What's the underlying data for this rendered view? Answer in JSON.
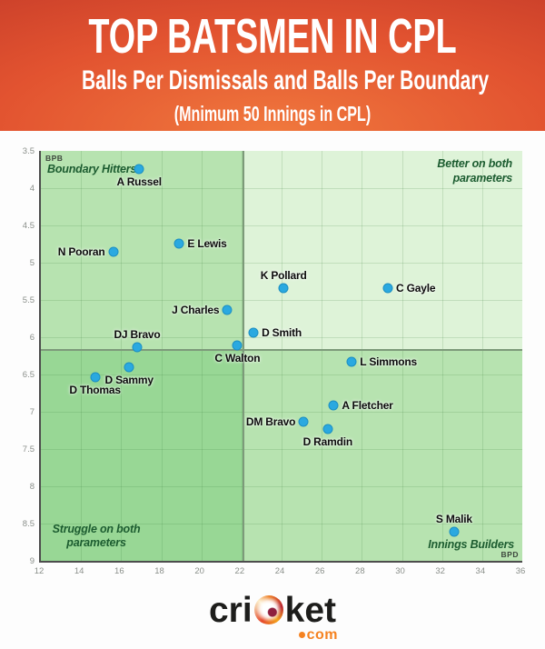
{
  "header": {
    "title": "TOP BATSMEN IN CPL",
    "subtitle": "Balls Per Dismissals and Balls Per Boundary",
    "note": "(Mnimum 50 Innings in CPL)",
    "colors": {
      "gradient_center": "#f0783d",
      "gradient_mid": "#e25330",
      "gradient_edge": "#ba3226",
      "text": "#ffffff"
    }
  },
  "chart_data": {
    "type": "scatter",
    "title": "TOP BATSMEN IN CPL — Balls Per Dismissals and Balls Per Boundary",
    "x_axis": {
      "label": "BPD",
      "min": 12,
      "max": 36,
      "ticks": [
        12,
        14,
        16,
        18,
        20,
        22,
        24,
        26,
        28,
        30,
        32,
        34,
        36
      ],
      "tick_labels": [
        "12",
        "14",
        "16",
        "18",
        "20",
        "22",
        "24",
        "26",
        "28",
        "30",
        "32",
        "34",
        "36"
      ]
    },
    "y_axis": {
      "label": "BPB",
      "min": 3.5,
      "max": 9,
      "increases_downward": true,
      "ticks": [
        3.5,
        4,
        4.5,
        5,
        5.5,
        6,
        6.5,
        7,
        7.5,
        8,
        8.5,
        9
      ],
      "tick_labels": [
        "3.5",
        "4",
        "4.5",
        "5",
        "5.5",
        "6",
        "6.5",
        "7",
        "7.5",
        "8",
        "8.5",
        "9"
      ]
    },
    "quadrant_split": {
      "x": 22.1,
      "y": 6.17
    },
    "quadrant_labels": {
      "top_left": "Boundary Hitters",
      "top_right": "Better on both parameters",
      "bottom_left": "Struggle on both parameters",
      "bottom_right": "Innings Builders"
    },
    "quadrant_colors": {
      "top_left": "#b7e3b0",
      "top_right": "#def3d8",
      "bottom_left": "#98d795",
      "bottom_right": "#b7e3b0"
    },
    "point_color": "#2aa9e0",
    "grid_color": "rgba(62,130,62,0.18)",
    "divider_color": "#7d9a7a",
    "annotation_color": "#1c5c30",
    "points": [
      {
        "name": "A Russel",
        "x": 16.9,
        "y": 3.74,
        "label_pos": "below"
      },
      {
        "name": "N Pooran",
        "x": 15.6,
        "y": 4.85,
        "label_pos": "left"
      },
      {
        "name": "E Lewis",
        "x": 18.9,
        "y": 4.74,
        "label_pos": "right"
      },
      {
        "name": "K Pollard",
        "x": 24.1,
        "y": 5.34,
        "label_pos": "above"
      },
      {
        "name": "C Gayle",
        "x": 29.3,
        "y": 5.34,
        "label_pos": "right"
      },
      {
        "name": "J Charles",
        "x": 21.3,
        "y": 5.64,
        "label_pos": "left"
      },
      {
        "name": "D Smith",
        "x": 22.6,
        "y": 5.94,
        "label_pos": "right"
      },
      {
        "name": "DJ Bravo",
        "x": 16.8,
        "y": 6.13,
        "label_pos": "above"
      },
      {
        "name": "C Walton",
        "x": 21.8,
        "y": 6.11,
        "label_pos": "below"
      },
      {
        "name": "L Simmons",
        "x": 27.5,
        "y": 6.33,
        "label_pos": "right"
      },
      {
        "name": "D Sammy",
        "x": 16.4,
        "y": 6.4,
        "label_pos": "below"
      },
      {
        "name": "D Thomas",
        "x": 14.7,
        "y": 6.54,
        "label_pos": "below"
      },
      {
        "name": "A Fletcher",
        "x": 26.6,
        "y": 6.92,
        "label_pos": "right"
      },
      {
        "name": "DM Bravo",
        "x": 25.1,
        "y": 7.13,
        "label_pos": "left"
      },
      {
        "name": "D Ramdin",
        "x": 26.3,
        "y": 7.23,
        "label_pos": "below"
      },
      {
        "name": "S Malik",
        "x": 32.6,
        "y": 8.61,
        "label_pos": "above"
      }
    ]
  },
  "footer": {
    "logo_prefix": "cri",
    "logo_suffix": "ket",
    "domain": "com",
    "domain_color": "#f58220",
    "logo_text_color": "#1d1d1b"
  }
}
